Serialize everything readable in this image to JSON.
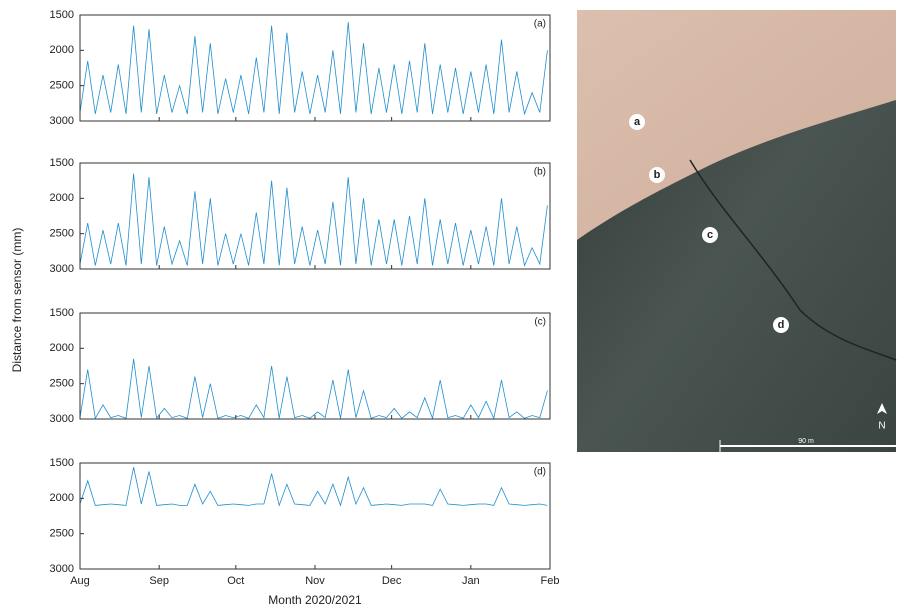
{
  "ylabel": "Distance from sensor (mm)",
  "xlabel": "Month 2020/2021",
  "xlim": [
    0,
    184
  ],
  "xticks": [
    {
      "value": 0,
      "label": "Aug"
    },
    {
      "value": 31,
      "label": "Sep"
    },
    {
      "value": 61,
      "label": "Oct"
    },
    {
      "value": 92,
      "label": "Nov"
    },
    {
      "value": 122,
      "label": "Dec"
    },
    {
      "value": 153,
      "label": "Jan"
    },
    {
      "value": 184,
      "label": "Feb"
    }
  ],
  "x": [
    0,
    3,
    6,
    9,
    12,
    15,
    18,
    21,
    24,
    27,
    30,
    33,
    36,
    39,
    42,
    45,
    48,
    51,
    54,
    57,
    60,
    63,
    66,
    69,
    72,
    75,
    78,
    81,
    84,
    87,
    90,
    93,
    96,
    99,
    102,
    105,
    108,
    111,
    114,
    117,
    120,
    123,
    126,
    129,
    132,
    135,
    138,
    141,
    144,
    147,
    150,
    153,
    156,
    159,
    162,
    165,
    168,
    171,
    174,
    177,
    180,
    183
  ],
  "chart_data": [
    {
      "type": "line",
      "title": "(a)",
      "color": "#1f8fcf",
      "invert_y": true,
      "ylim": [
        1500,
        3000
      ],
      "yticks": [
        1500,
        2000,
        2500,
        3000
      ],
      "values": [
        2880,
        2150,
        2900,
        2350,
        2880,
        2200,
        2900,
        1650,
        2880,
        1700,
        2900,
        2350,
        2880,
        2500,
        2900,
        1800,
        2880,
        1900,
        2900,
        2400,
        2880,
        2350,
        2900,
        2100,
        2880,
        1650,
        2900,
        1750,
        2880,
        2300,
        2900,
        2350,
        2880,
        2000,
        2900,
        1600,
        2880,
        1900,
        2900,
        2250,
        2880,
        2200,
        2900,
        2150,
        2880,
        1900,
        2900,
        2200,
        2880,
        2250,
        2900,
        2300,
        2880,
        2200,
        2900,
        1850,
        2880,
        2300,
        2900,
        2600,
        2880,
        2000
      ]
    },
    {
      "type": "line",
      "title": "(b)",
      "color": "#1f8fcf",
      "invert_y": true,
      "ylim": [
        1500,
        3000
      ],
      "yticks": [
        1500,
        2000,
        2500,
        3000
      ],
      "values": [
        2930,
        2350,
        2950,
        2450,
        2930,
        2350,
        2950,
        1650,
        2930,
        1700,
        2950,
        2400,
        2930,
        2600,
        2950,
        1900,
        2930,
        2000,
        2950,
        2500,
        2930,
        2500,
        2950,
        2200,
        2930,
        1750,
        2950,
        1850,
        2930,
        2400,
        2950,
        2450,
        2930,
        2050,
        2950,
        1700,
        2930,
        2000,
        2950,
        2300,
        2930,
        2300,
        2950,
        2250,
        2930,
        2000,
        2950,
        2300,
        2930,
        2350,
        2950,
        2450,
        2930,
        2400,
        2950,
        2000,
        2930,
        2400,
        2950,
        2700,
        2930,
        2100
      ]
    },
    {
      "type": "line",
      "title": "(c)",
      "color": "#1f8fcf",
      "invert_y": true,
      "ylim": [
        1500,
        3000
      ],
      "yticks": [
        1500,
        2000,
        2500,
        3000
      ],
      "values": [
        2980,
        2300,
        2990,
        2800,
        2980,
        2950,
        2990,
        2150,
        2980,
        2250,
        2990,
        2850,
        2980,
        2950,
        2990,
        2400,
        2980,
        2500,
        2990,
        2950,
        2980,
        2950,
        2990,
        2800,
        2980,
        2250,
        2990,
        2400,
        2980,
        2950,
        2990,
        2900,
        2980,
        2450,
        2990,
        2300,
        2980,
        2600,
        2990,
        2950,
        2980,
        2850,
        2990,
        2900,
        2980,
        2700,
        2990,
        2450,
        2980,
        2950,
        2990,
        2800,
        2980,
        2750,
        2990,
        2450,
        2980,
        2900,
        2990,
        2950,
        2980,
        2600
      ]
    },
    {
      "type": "line",
      "title": "(d)",
      "color": "#1f8fcf",
      "invert_y": true,
      "ylim": [
        1500,
        3000
      ],
      "yticks": [
        1500,
        2000,
        2500,
        3000
      ],
      "values": [
        2080,
        1750,
        2100,
        2090,
        2080,
        2090,
        2100,
        1560,
        2080,
        1620,
        2100,
        2090,
        2080,
        2100,
        2100,
        1800,
        2080,
        1900,
        2100,
        2090,
        2080,
        2090,
        2100,
        2080,
        2080,
        1650,
        2100,
        1800,
        2080,
        2090,
        2100,
        1900,
        2080,
        1800,
        2100,
        1700,
        2080,
        1850,
        2100,
        2090,
        2080,
        2090,
        2100,
        2080,
        2080,
        2080,
        2100,
        1870,
        2080,
        2090,
        2100,
        2090,
        2080,
        2080,
        2100,
        1850,
        2080,
        2090,
        2100,
        2090,
        2080,
        2100
      ]
    }
  ],
  "map": {
    "labels": [
      "a",
      "b",
      "c",
      "d"
    ],
    "scale": "90 m",
    "north": "N"
  }
}
